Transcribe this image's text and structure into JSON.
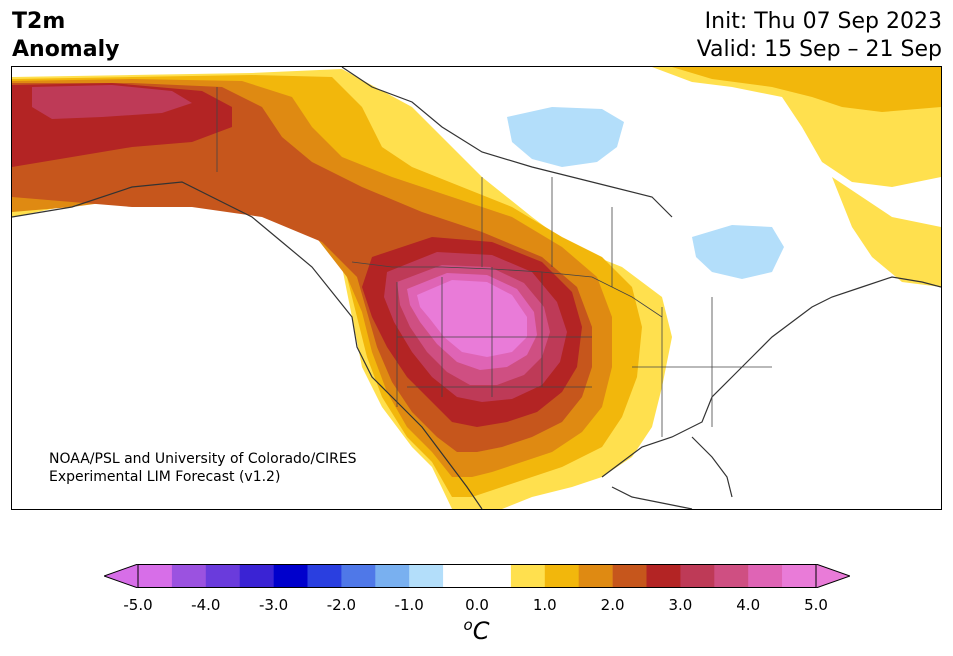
{
  "title": {
    "left_line1": "T2m",
    "left_line2": "Anomaly",
    "right_line1": "Init: Thu 07 Sep 2023",
    "right_line2": "Valid: 15 Sep – 21 Sep"
  },
  "credit": {
    "line1": "NOAA/PSL and University of Colorado/CIRES",
    "line2": "Experimental LIM Forecast (v1.2)"
  },
  "colorbar": {
    "ticks": [
      "-5.0",
      "-4.0",
      "-3.0",
      "-2.0",
      "-1.0",
      "0.0",
      "1.0",
      "2.0",
      "3.0",
      "4.0",
      "5.0"
    ],
    "unit_base": "C",
    "unit_sup": "o",
    "colors": [
      "#d76ee8",
      "#9b52e0",
      "#6a3bdc",
      "#3a23d4",
      "#0000cc",
      "#2a3fe0",
      "#4f78e8",
      "#79b0f0",
      "#b3defa",
      "#ffffff",
      "#ffffff",
      "#ffe04e",
      "#f2b70c",
      "#df8a12",
      "#c6561c",
      "#b32424",
      "#be3a57",
      "#cf4f82",
      "#df64b5",
      "#e97bd8"
    ],
    "under_color": "#d76ee8",
    "over_color": "#e97bd8"
  },
  "map": {
    "region": "North America",
    "palette": {
      "ocean": "#ffffff",
      "land": "#ffffff",
      "coast": "#333333",
      "anom_1": "#ffe04e",
      "anom_1_5": "#f2b70c",
      "anom_2": "#df8a12",
      "anom_2_5": "#c6561c",
      "anom_3": "#b32424",
      "anom_3_5": "#be3a57",
      "anom_4": "#cf4f82",
      "anom_4_5": "#df64b5",
      "anom_5": "#e97bd8",
      "anom_neg_1": "#b3defa"
    }
  }
}
